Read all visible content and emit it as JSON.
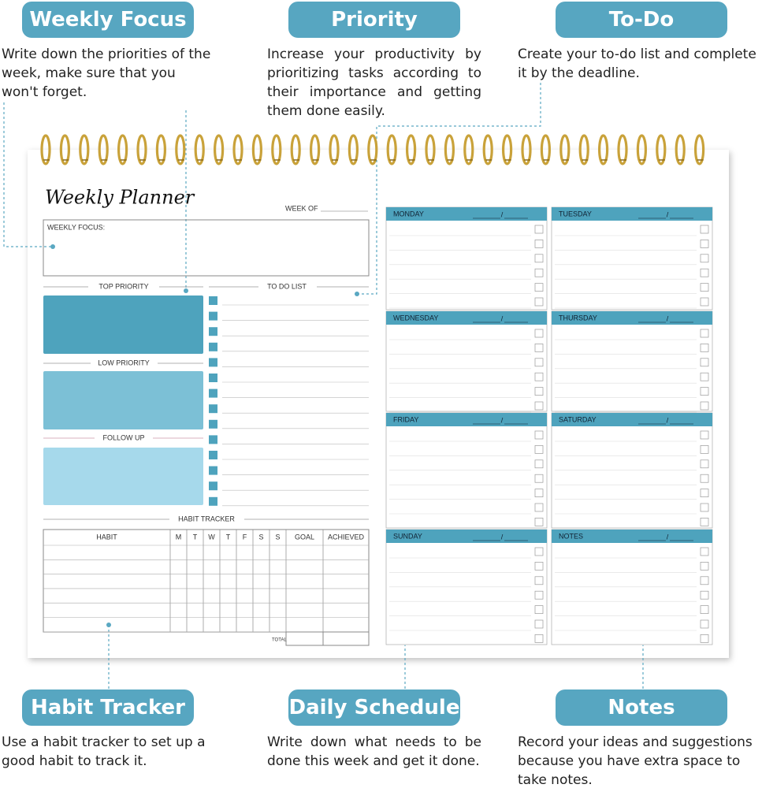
{
  "callouts": [
    {
      "title": "Weekly Focus",
      "text": "Write down the priorities of the week, make sure that you won't forget."
    },
    {
      "title": "Priority",
      "text": "Increase your productivity by prioritizing tasks according to their importance and getting them done easily."
    },
    {
      "title": "To-Do",
      "text": "Create your to-do list and complete it by the deadline."
    },
    {
      "title": "Habit Tracker",
      "text": "Use a habit tracker to set up a good habit to track it."
    },
    {
      "title": "Daily Schedule",
      "text": "Write down what needs to be done this week and get it done."
    },
    {
      "title": "Notes",
      "text": "Record your ideas and suggestions because you have extra space to take notes."
    }
  ],
  "planner": {
    "title": "Weekly Planner",
    "week_of": "WEEK OF",
    "weekly_focus": "WEEKLY FOCUS:",
    "top_priority": "TOP PRIORITY",
    "to_do_list": "TO DO LIST",
    "low_priority": "LOW PRIORITY",
    "follow_up": "FOLLOW UP",
    "habit_tracker": "HABIT TRACKER",
    "habit_columns": [
      "HABIT",
      "M",
      "T",
      "W",
      "T",
      "F",
      "S",
      "S",
      "GOAL",
      "ACHIEVED"
    ],
    "total": "TOTAL",
    "days": [
      "MONDAY",
      "TUESDAY",
      "WEDNESDAY",
      "THURSDAY",
      "FRIDAY",
      "SATURDAY",
      "SUNDAY",
      "NOTES"
    ],
    "date_separator": "/"
  }
}
